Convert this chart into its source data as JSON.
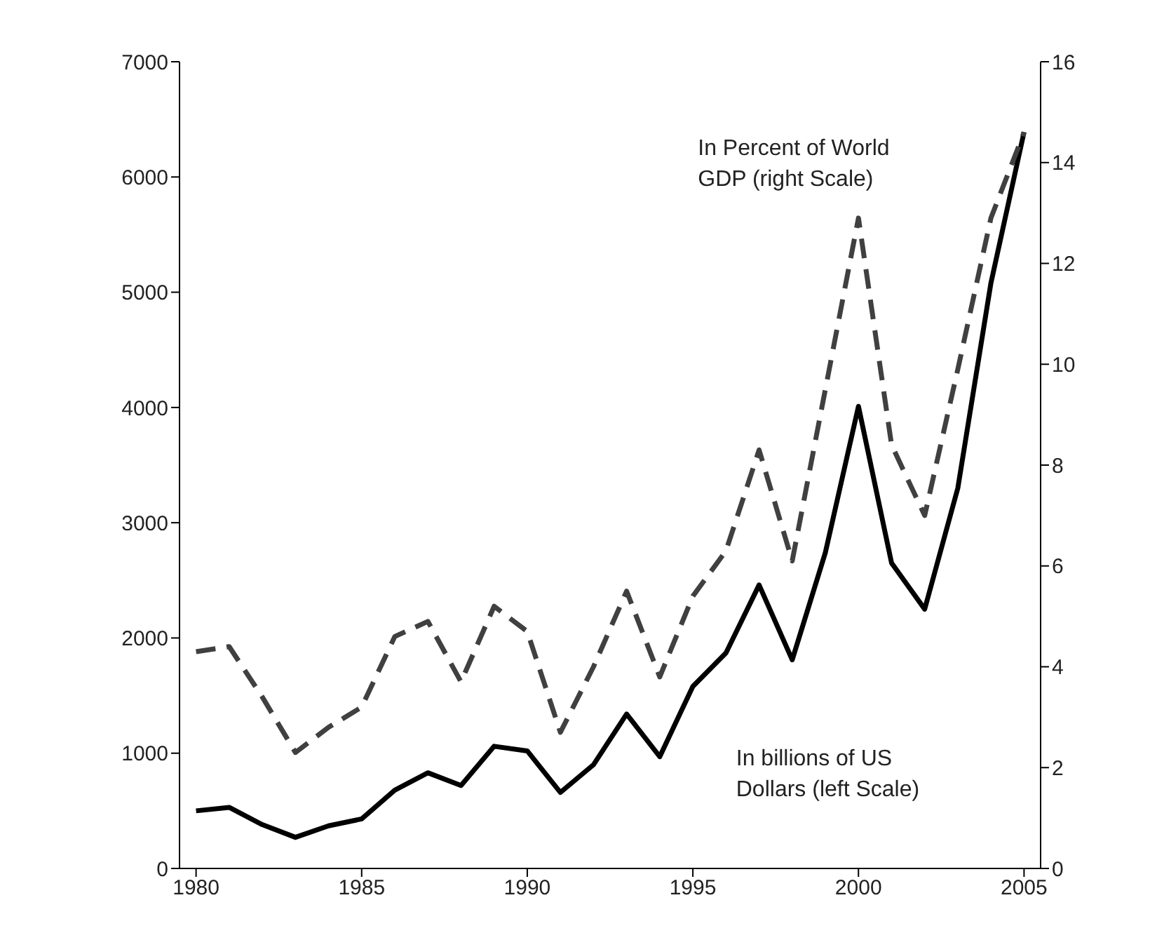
{
  "chart_data": {
    "type": "line",
    "x": [
      1980,
      1981,
      1982,
      1983,
      1984,
      1985,
      1986,
      1987,
      1988,
      1989,
      1990,
      1991,
      1992,
      1993,
      1994,
      1995,
      1996,
      1997,
      1998,
      1999,
      2000,
      2001,
      2002,
      2003,
      2004,
      2005
    ],
    "series": [
      {
        "name": "In billions of US Dollars (left Scale)",
        "color": "#000000",
        "line_style": "solid",
        "values": [
          500,
          530,
          380,
          270,
          370,
          430,
          680,
          830,
          720,
          1060,
          1020,
          660,
          900,
          1340,
          970,
          1580,
          1870,
          2460,
          1810,
          2740,
          4010,
          2650,
          2250,
          3300,
          5080,
          6390
        ]
      },
      {
        "name": "In Percent of World GDP (right Scale)",
        "color": "#404040",
        "line_style": "dashed",
        "axis": "y2",
        "values": [
          4.3,
          4.4,
          3.4,
          2.3,
          2.8,
          3.2,
          4.6,
          4.9,
          3.7,
          5.2,
          4.7,
          2.7,
          4.0,
          5.5,
          3.8,
          5.4,
          6.3,
          8.3,
          6.1,
          9.5,
          12.9,
          8.4,
          7.0,
          9.9,
          12.9,
          14.6
        ]
      }
    ],
    "xlim": [
      1979.5,
      2005.5
    ],
    "xticks": [
      1980,
      1985,
      1990,
      1995,
      2000,
      2005
    ],
    "ylim": [
      0,
      7000
    ],
    "yticks": [
      0,
      1000,
      2000,
      3000,
      4000,
      5000,
      6000,
      7000
    ],
    "y2lim": [
      0,
      16
    ],
    "y2ticks": [
      0,
      2,
      4,
      6,
      8,
      10,
      12,
      14,
      16
    ],
    "grid": false,
    "legend": false,
    "marker": "none"
  }
}
